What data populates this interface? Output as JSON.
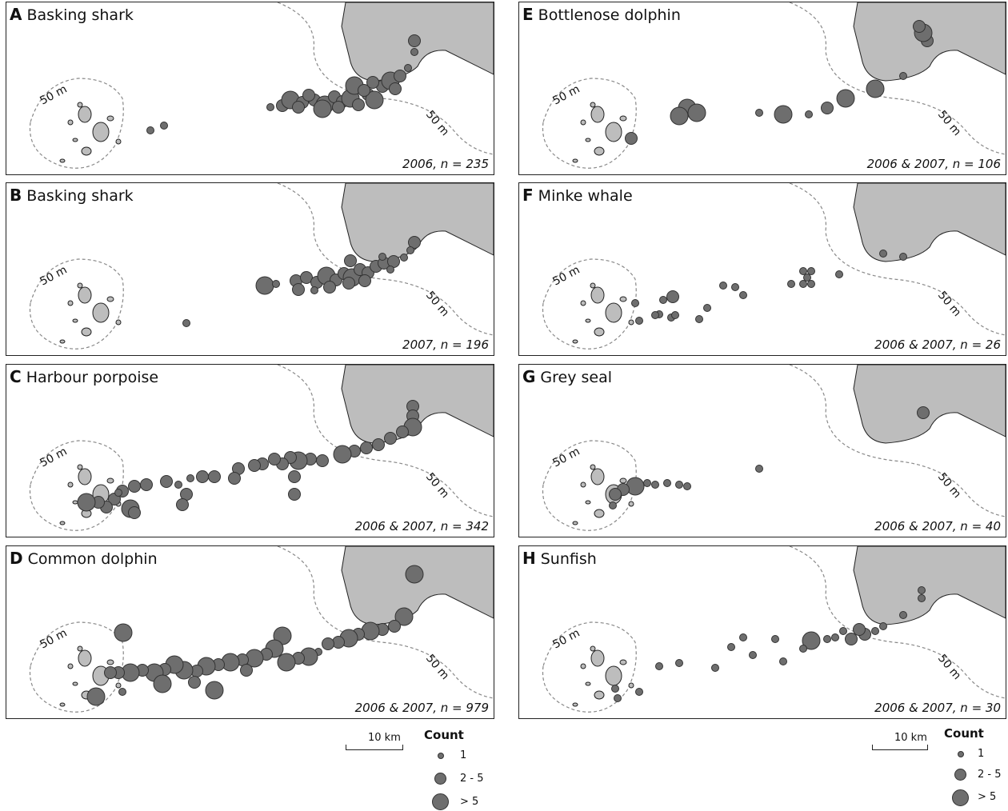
{
  "depth_label": "50 m",
  "colors": {
    "land": "#bdbdbd",
    "sighting": "#6e6e6e",
    "sighting_stroke": "#333333",
    "isobath": "#888888"
  },
  "panels": [
    {
      "letter": "A",
      "species": "Basking shark",
      "footer": "2006, n = 235"
    },
    {
      "letter": "B",
      "species": "Basking shark",
      "footer": "2007, n = 196"
    },
    {
      "letter": "C",
      "species": "Harbour porpoise",
      "footer": "2006 & 2007, n = 342"
    },
    {
      "letter": "D",
      "species": "Common dolphin",
      "footer": "2006 & 2007, n = 979"
    },
    {
      "letter": "E",
      "species": "Bottlenose dolphin",
      "footer": "2006 & 2007, n = 106"
    },
    {
      "letter": "F",
      "species": "Minke whale",
      "footer": "2006 & 2007, n = 26"
    },
    {
      "letter": "G",
      "species": "Grey seal",
      "footer": "2006 & 2007, n = 40"
    },
    {
      "letter": "H",
      "species": "Sunfish",
      "footer": "2006 & 2007, n = 30"
    }
  ],
  "legend": {
    "title": "Count",
    "scale": "10 km",
    "items": [
      {
        "label": "1",
        "size_class": "small"
      },
      {
        "label": "2 - 5",
        "size_class": "medium"
      },
      {
        "label": "> 5",
        "size_class": "large"
      }
    ]
  }
}
